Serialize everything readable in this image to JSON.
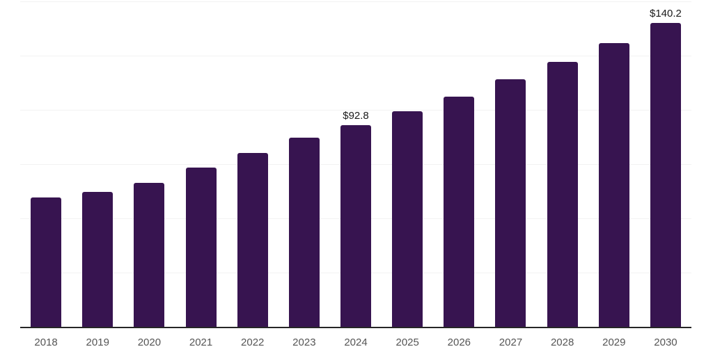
{
  "chart_data": {
    "type": "bar",
    "title": "",
    "xlabel": "",
    "ylabel": "",
    "categories": [
      "2018",
      "2019",
      "2020",
      "2021",
      "2022",
      "2023",
      "2024",
      "2025",
      "2026",
      "2027",
      "2028",
      "2029",
      "2030"
    ],
    "values": [
      59.6,
      62.3,
      66.4,
      73.3,
      80.1,
      87.2,
      92.8,
      99.4,
      106.0,
      114.0,
      122.2,
      130.9,
      140.2
    ],
    "data_labels": {
      "2024": "$92.8",
      "2030": "$140.2"
    },
    "ylim": [
      0,
      150
    ],
    "grid_interval": 25,
    "grid": "horizontal-only",
    "legend_position": "none",
    "colors": {
      "bar": "#371450",
      "axis_line": "#262626",
      "gridline": "#f2f2f2",
      "tick_label": "#555555",
      "data_label": "#1a1a1a",
      "background": "#ffffff"
    }
  }
}
